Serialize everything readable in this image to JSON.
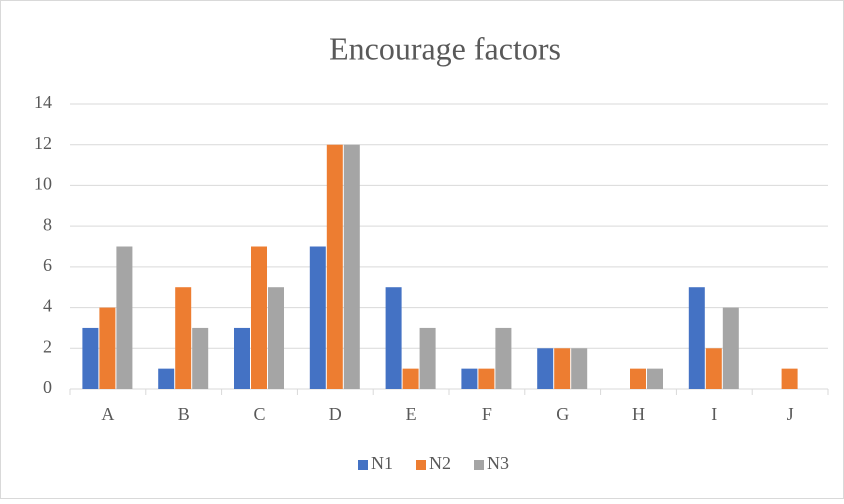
{
  "chart_data": {
    "type": "bar",
    "title": "Encourage factors",
    "categories": [
      "A",
      "B",
      "C",
      "D",
      "E",
      "F",
      "G",
      "H",
      "I",
      "J"
    ],
    "series": [
      {
        "name": "N1",
        "color": "#4472c4",
        "values": [
          3,
          1,
          3,
          7,
          5,
          1,
          2,
          0,
          5,
          0
        ]
      },
      {
        "name": "N2",
        "color": "#ed7d31",
        "values": [
          4,
          5,
          7,
          12,
          1,
          1,
          2,
          1,
          2,
          1
        ]
      },
      {
        "name": "N3",
        "color": "#a5a5a5",
        "values": [
          7,
          3,
          5,
          12,
          3,
          3,
          2,
          1,
          4,
          0
        ]
      }
    ],
    "ylim": [
      0,
      14
    ],
    "yticks": [
      0,
      2,
      4,
      6,
      8,
      10,
      12,
      14
    ],
    "grid": true,
    "legend": "bottom"
  }
}
